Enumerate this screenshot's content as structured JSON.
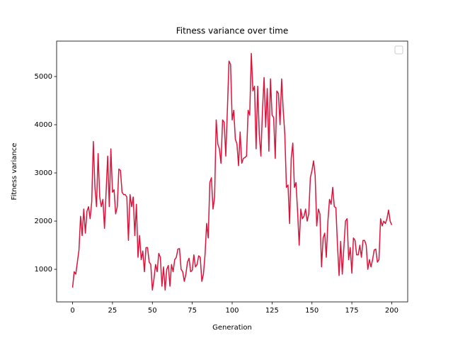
{
  "chart_data": {
    "type": "line",
    "title": "Fitness variance over time",
    "xlabel": "Generation",
    "ylabel": "Fitness variance",
    "x": [
      0,
      1,
      2,
      3,
      4,
      5,
      6,
      7,
      8,
      9,
      10,
      11,
      12,
      13,
      14,
      15,
      16,
      17,
      18,
      19,
      20,
      21,
      22,
      23,
      24,
      25,
      26,
      27,
      28,
      29,
      30,
      31,
      32,
      33,
      34,
      35,
      36,
      37,
      38,
      39,
      40,
      41,
      42,
      43,
      44,
      45,
      46,
      47,
      48,
      49,
      50,
      51,
      52,
      53,
      54,
      55,
      56,
      57,
      58,
      59,
      60,
      61,
      62,
      63,
      64,
      65,
      66,
      67,
      68,
      69,
      70,
      71,
      72,
      73,
      74,
      75,
      76,
      77,
      78,
      79,
      80,
      81,
      82,
      83,
      84,
      85,
      86,
      87,
      88,
      89,
      90,
      91,
      92,
      93,
      94,
      95,
      96,
      97,
      98,
      99,
      100,
      101,
      102,
      103,
      104,
      105,
      106,
      107,
      108,
      109,
      110,
      111,
      112,
      113,
      114,
      115,
      116,
      117,
      118,
      119,
      120,
      121,
      122,
      123,
      124,
      125,
      126,
      127,
      128,
      129,
      130,
      131,
      132,
      133,
      134,
      135,
      136,
      137,
      138,
      139,
      140,
      141,
      142,
      143,
      144,
      145,
      146,
      147,
      148,
      149,
      150,
      151,
      152,
      153,
      154,
      155,
      156,
      157,
      158,
      159,
      160,
      161,
      162,
      163,
      164,
      165,
      166,
      167,
      168,
      169,
      170,
      171,
      172,
      173,
      174,
      175,
      176,
      177,
      178,
      179,
      180,
      181,
      182,
      183,
      184,
      185,
      186,
      187,
      188,
      189,
      190,
      191,
      192,
      193,
      194,
      195,
      196,
      197,
      198,
      199,
      200
    ],
    "series": [
      {
        "color": "#dc143c",
        "values": [
          620,
          950,
          900,
          1150,
          1400,
          2100,
          1700,
          2250,
          1750,
          2200,
          2300,
          2050,
          2400,
          3650,
          2700,
          2300,
          3400,
          2500,
          2300,
          2450,
          1850,
          2600,
          3350,
          2300,
          3500,
          2600,
          2650,
          2150,
          2300,
          3080,
          3050,
          2600,
          2550,
          2550,
          2500,
          1600,
          2550,
          2300,
          2500,
          1700,
          2350,
          1250,
          1700,
          1200,
          1380,
          950,
          1450,
          1450,
          1150,
          1100,
          570,
          800,
          1100,
          950,
          1330,
          1250,
          650,
          1050,
          570,
          1000,
          1080,
          650,
          1100,
          950,
          1200,
          1250,
          1420,
          1430,
          1000,
          950,
          750,
          900,
          1150,
          1230,
          950,
          980,
          1300,
          1050,
          1100,
          1280,
          1250,
          750,
          900,
          1300,
          1950,
          1650,
          2800,
          2900,
          2250,
          2500,
          4100,
          3600,
          3500,
          3200,
          4100,
          4050,
          3350,
          4300,
          5320,
          5250,
          4100,
          4300,
          3700,
          3600,
          3150,
          3850,
          3200,
          3300,
          3320,
          3350,
          4300,
          4200,
          5480,
          4700,
          4800,
          3500,
          4800,
          3800,
          3350,
          4300,
          4980,
          3950,
          4750,
          3450,
          4950,
          4200,
          4150,
          3300,
          4700,
          4650,
          4000,
          4950,
          4300,
          3800,
          2700,
          2750,
          1950,
          3300,
          3620,
          2700,
          2800,
          2200,
          1500,
          2250,
          2050,
          2100,
          2250,
          2000,
          2150,
          2900,
          3050,
          3250,
          2950,
          1900,
          2250,
          2150,
          1050,
          1650,
          1750,
          1250,
          2000,
          2450,
          2350,
          2700,
          2300,
          2280,
          1500,
          870,
          1580,
          900,
          1450,
          2000,
          2050,
          1200,
          1450,
          920,
          1650,
          1600,
          1300,
          1300,
          1500,
          1250,
          1600,
          1600,
          1500,
          1000,
          1200,
          1050,
          1200,
          1400,
          1420,
          1150,
          1200,
          2050,
          1900,
          2000,
          1950,
          2050,
          2230,
          2000,
          1920
        ]
      }
    ],
    "xlim": [
      -10,
      210
    ],
    "ylim": [
      324,
      5735
    ],
    "xticks": [
      0,
      25,
      50,
      75,
      100,
      125,
      150,
      175,
      200
    ],
    "yticks": [
      1000,
      2000,
      3000,
      4000,
      5000
    ]
  }
}
